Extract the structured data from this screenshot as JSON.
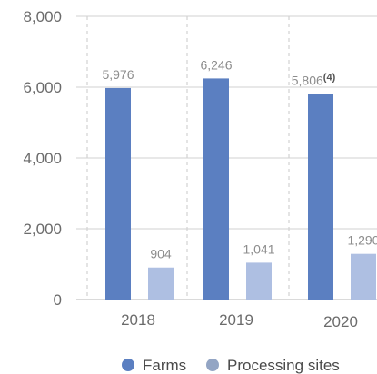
{
  "chart_data": {
    "type": "bar",
    "categories": [
      "2018",
      "2019",
      "2020"
    ],
    "series": [
      {
        "name": "Farms",
        "color": "#5b7fc1",
        "values": [
          5976,
          6246,
          5806
        ],
        "labels": [
          "5,976",
          "6,246",
          "5,806"
        ]
      },
      {
        "name": "Processing sites",
        "color": "#aebfe2",
        "values": [
          904,
          1041,
          1290
        ],
        "labels": [
          "904",
          "1,041",
          "1,290"
        ]
      }
    ],
    "footnote_marker": "(4)",
    "yticks": [
      "0",
      "2,000",
      "4,000",
      "6,000",
      "8,000"
    ],
    "ylim": [
      0,
      8000
    ],
    "gridlines": "horizontal solid, vertical dashed",
    "legend_position": "bottom-center",
    "title": "",
    "xlabel": "",
    "ylabel": ""
  }
}
